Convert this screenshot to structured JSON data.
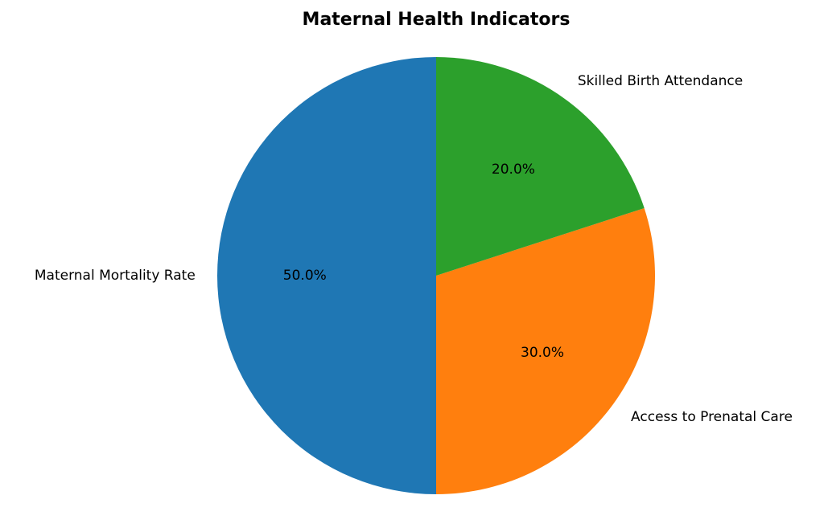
{
  "chart_data": {
    "type": "pie",
    "title": "Maternal Health Indicators",
    "categories": [
      "Maternal Mortality Rate",
      "Access to Prenatal Care",
      "Skilled Birth Attendance"
    ],
    "values": [
      50,
      30,
      20
    ],
    "value_labels": [
      "50.0%",
      "30.0%",
      "20.0%"
    ],
    "colors": [
      "#1f77b4",
      "#ff7f0e",
      "#2ca02c"
    ],
    "start_angle": 90
  }
}
